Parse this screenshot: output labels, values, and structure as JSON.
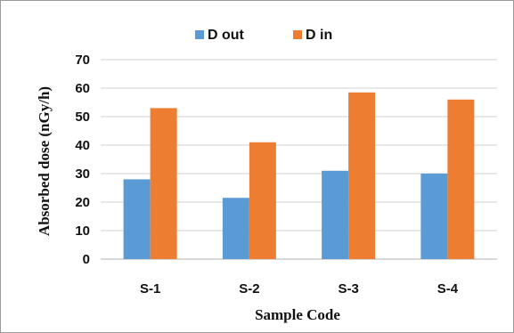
{
  "chart_data": {
    "type": "bar",
    "title": "",
    "xlabel": "Sample Code",
    "ylabel": "Absorbed dose  (nGy/h)",
    "categories": [
      "S-1",
      "S-2",
      "S-3",
      "S-4"
    ],
    "series": [
      {
        "name": "D out",
        "color": "#5b9bd5",
        "values": [
          28,
          21.5,
          31,
          30
        ]
      },
      {
        "name": "D in",
        "color": "#ed7d31",
        "values": [
          53,
          41,
          58.5,
          56
        ]
      }
    ],
    "ylim": [
      0,
      70
    ],
    "yticks": [
      0,
      10,
      20,
      30,
      40,
      50,
      60,
      70
    ],
    "grid": true,
    "legend_position": "top"
  }
}
